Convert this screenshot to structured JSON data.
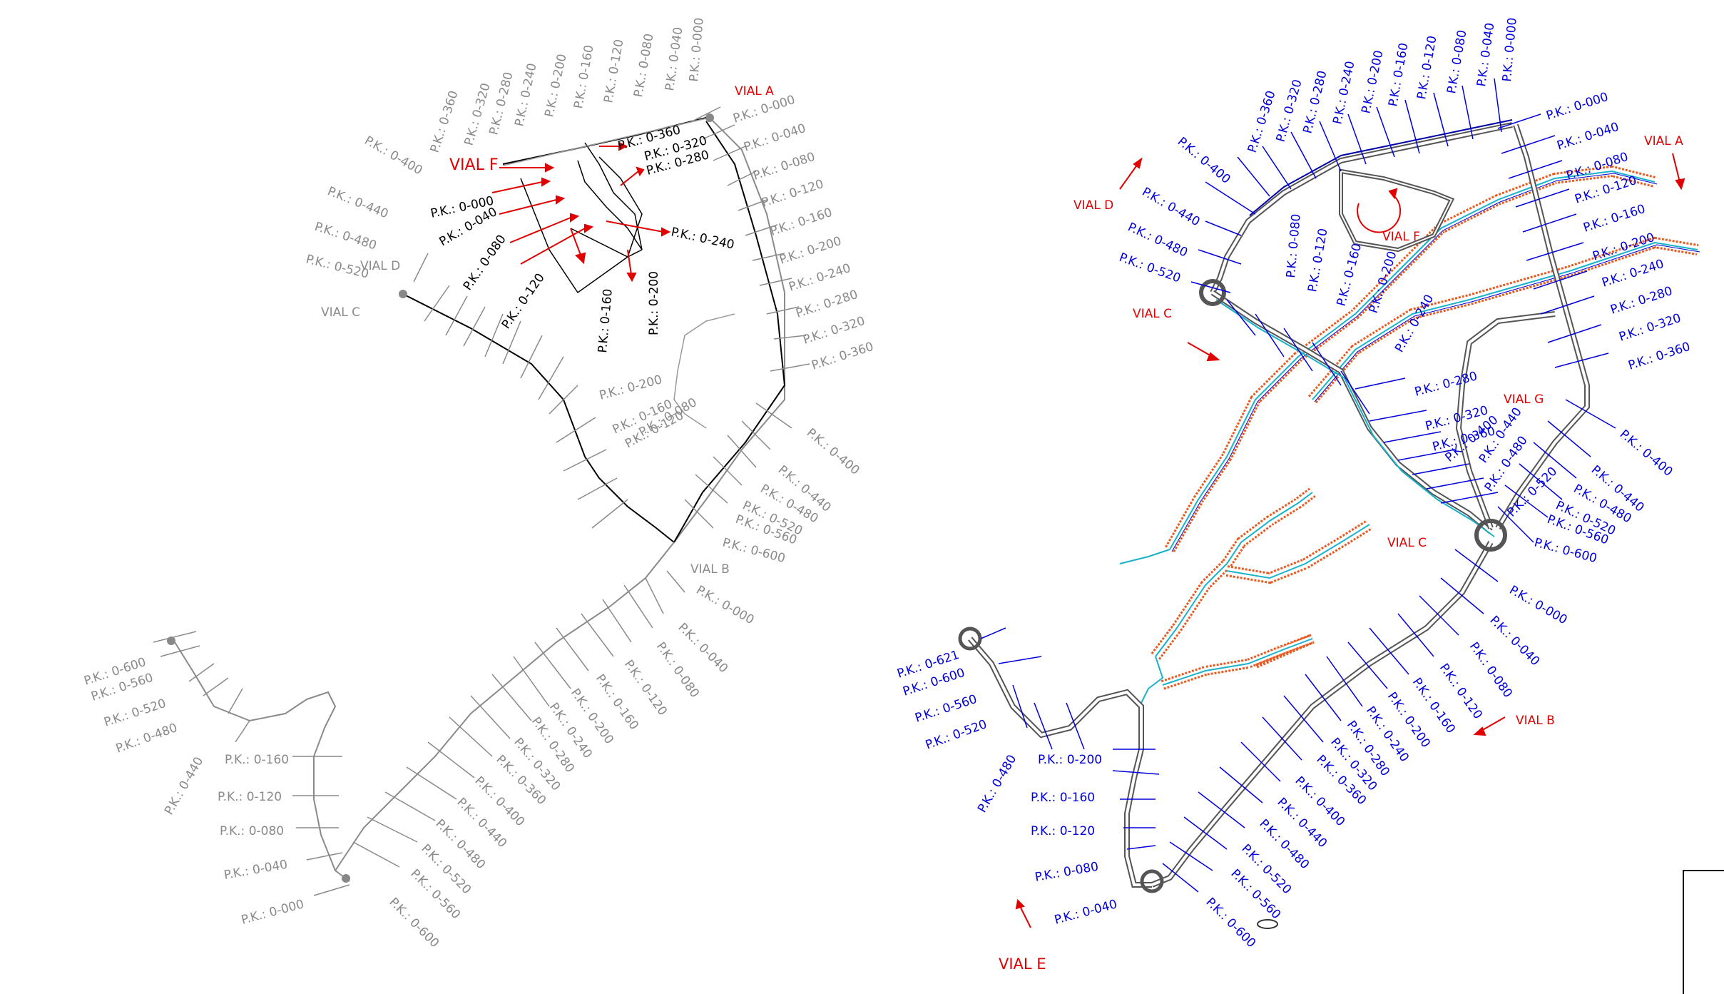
{
  "left_plan": {
    "vials": {
      "a": "VIAL A",
      "b": "VIAL B",
      "c": "VIAL C",
      "d": "VIAL D",
      "f": "VIAL F"
    },
    "vial_a_stations": [
      "P.K.: 0-000",
      "P.K.: 0-040",
      "P.K.: 0-080",
      "P.K.: 0-120",
      "P.K.: 0-160",
      "P.K.: 0-200",
      "P.K.: 0-240",
      "P.K.: 0-280",
      "P.K.: 0-320",
      "P.K.: 0-360",
      "P.K.: 0-400",
      "P.K.: 0-440",
      "P.K.: 0-480",
      "P.K.: 0-520",
      "P.K.: 0-560",
      "P.K.: 0-600"
    ],
    "vial_d_stations": [
      "P.K.: 0-000",
      "P.K.: 0-040",
      "P.K.: 0-080",
      "P.K.: 0-120",
      "P.K.: 0-160",
      "P.K.: 0-200",
      "P.K.: 0-240",
      "P.K.: 0-280",
      "P.K.: 0-320",
      "P.K.: 0-360",
      "P.K.: 0-400",
      "P.K.: 0-440",
      "P.K.: 0-480",
      "P.K.: 0-520"
    ],
    "vial_f_stations": [
      "P.K.: 0-000",
      "P.K.: 0-040",
      "P.K.: 0-080",
      "P.K.: 0-120",
      "P.K.: 0-160",
      "P.K.: 0-200",
      "P.K.: 0-240",
      "P.K.: 0-280",
      "P.K.: 0-320",
      "P.K.: 0-360"
    ],
    "vial_c_stations": [
      "P.K.: 0-080",
      "P.K.: 0-120",
      "P.K.: 0-160",
      "P.K.: 0-200"
    ],
    "vial_b_stations": [
      "P.K.: 0-000",
      "P.K.: 0-040",
      "P.K.: 0-080",
      "P.K.: 0-120",
      "P.K.: 0-160",
      "P.K.: 0-200",
      "P.K.: 0-240",
      "P.K.: 0-280",
      "P.K.: 0-320",
      "P.K.: 0-360",
      "P.K.: 0-400",
      "P.K.: 0-440",
      "P.K.: 0-480",
      "P.K.: 0-520",
      "P.K.: 0-560",
      "P.K.: 0-600"
    ],
    "vial_e_stations": [
      "P.K.: 0-000",
      "P.K.: 0-040",
      "P.K.: 0-080",
      "P.K.: 0-120",
      "P.K.: 0-160",
      "P.K.: 0-440",
      "P.K.: 0-480",
      "P.K.: 0-520",
      "P.K.: 0-560",
      "P.K.: 0-600"
    ]
  },
  "right_plan": {
    "vials": {
      "a": "VIAL A",
      "b": "VIAL B",
      "c_top": "VIAL C",
      "c_mid": "VIAL C",
      "d": "VIAL D",
      "e": "VIAL E",
      "f": "VIAL F",
      "g": "VIAL G"
    },
    "vial_a_stations": [
      "P.K.: 0-000",
      "P.K.: 0-040",
      "P.K.: 0-080",
      "P.K.: 0-120",
      "P.K.: 0-160",
      "P.K.: 0-200",
      "P.K.: 0-240",
      "P.K.: 0-280",
      "P.K.: 0-320",
      "P.K.: 0-360",
      "P.K.: 0-400",
      "P.K.: 0-440",
      "P.K.: 0-480",
      "P.K.: 0-520",
      "P.K.: 0-560",
      "P.K.: 0-600"
    ],
    "vial_d_stations": [
      "P.K.: 0-000",
      "P.K.: 0-040",
      "P.K.: 0-080",
      "P.K.: 0-120",
      "P.K.: 0-160",
      "P.K.: 0-200",
      "P.K.: 0-240",
      "P.K.: 0-280",
      "P.K.: 0-320",
      "P.K.: 0-360",
      "P.K.: 0-400",
      "P.K.: 0-440",
      "P.K.: 0-480",
      "P.K.: 0-520"
    ],
    "vial_g_stations": [
      "P.K.: 0-280",
      "P.K.: 0-320",
      "P.K.: 0-360",
      "P.K.: 0-400",
      "P.K.: 0-440",
      "P.K.: 0-480",
      "P.K.: 0-520"
    ],
    "vial_b_stations": [
      "P.K.: 0-000",
      "P.K.: 0-040",
      "P.K.: 0-080",
      "P.K.: 0-120",
      "P.K.: 0-160",
      "P.K.: 0-200",
      "P.K.: 0-240",
      "P.K.: 0-280",
      "P.K.: 0-320",
      "P.K.: 0-360",
      "P.K.: 0-400",
      "P.K.: 0-440",
      "P.K.: 0-480",
      "P.K.: 0-520",
      "P.K.: 0-560",
      "P.K.: 0-600"
    ],
    "vial_e_stations": [
      "P.K.: 0-040",
      "P.K.: 0-080",
      "P.K.: 0-120",
      "P.K.: 0-160",
      "P.K.: 0-200",
      "P.K.: 0-480",
      "P.K.: 0-520",
      "P.K.: 0-560",
      "P.K.: 0-600",
      "P.K.: 0-621"
    ],
    "vial_c_stations": [
      "P.K.: 0-080",
      "P.K.: 0-120",
      "P.K.: 0-160",
      "P.K.: 0-200",
      "P.K.: 0-240"
    ]
  },
  "colors": {
    "gray": "#8a8a8a",
    "blue": "#0000dd",
    "red": "#e00000",
    "cyan": "#19b3c9",
    "orange": "#e85a1f",
    "road_dark": "#555555"
  }
}
